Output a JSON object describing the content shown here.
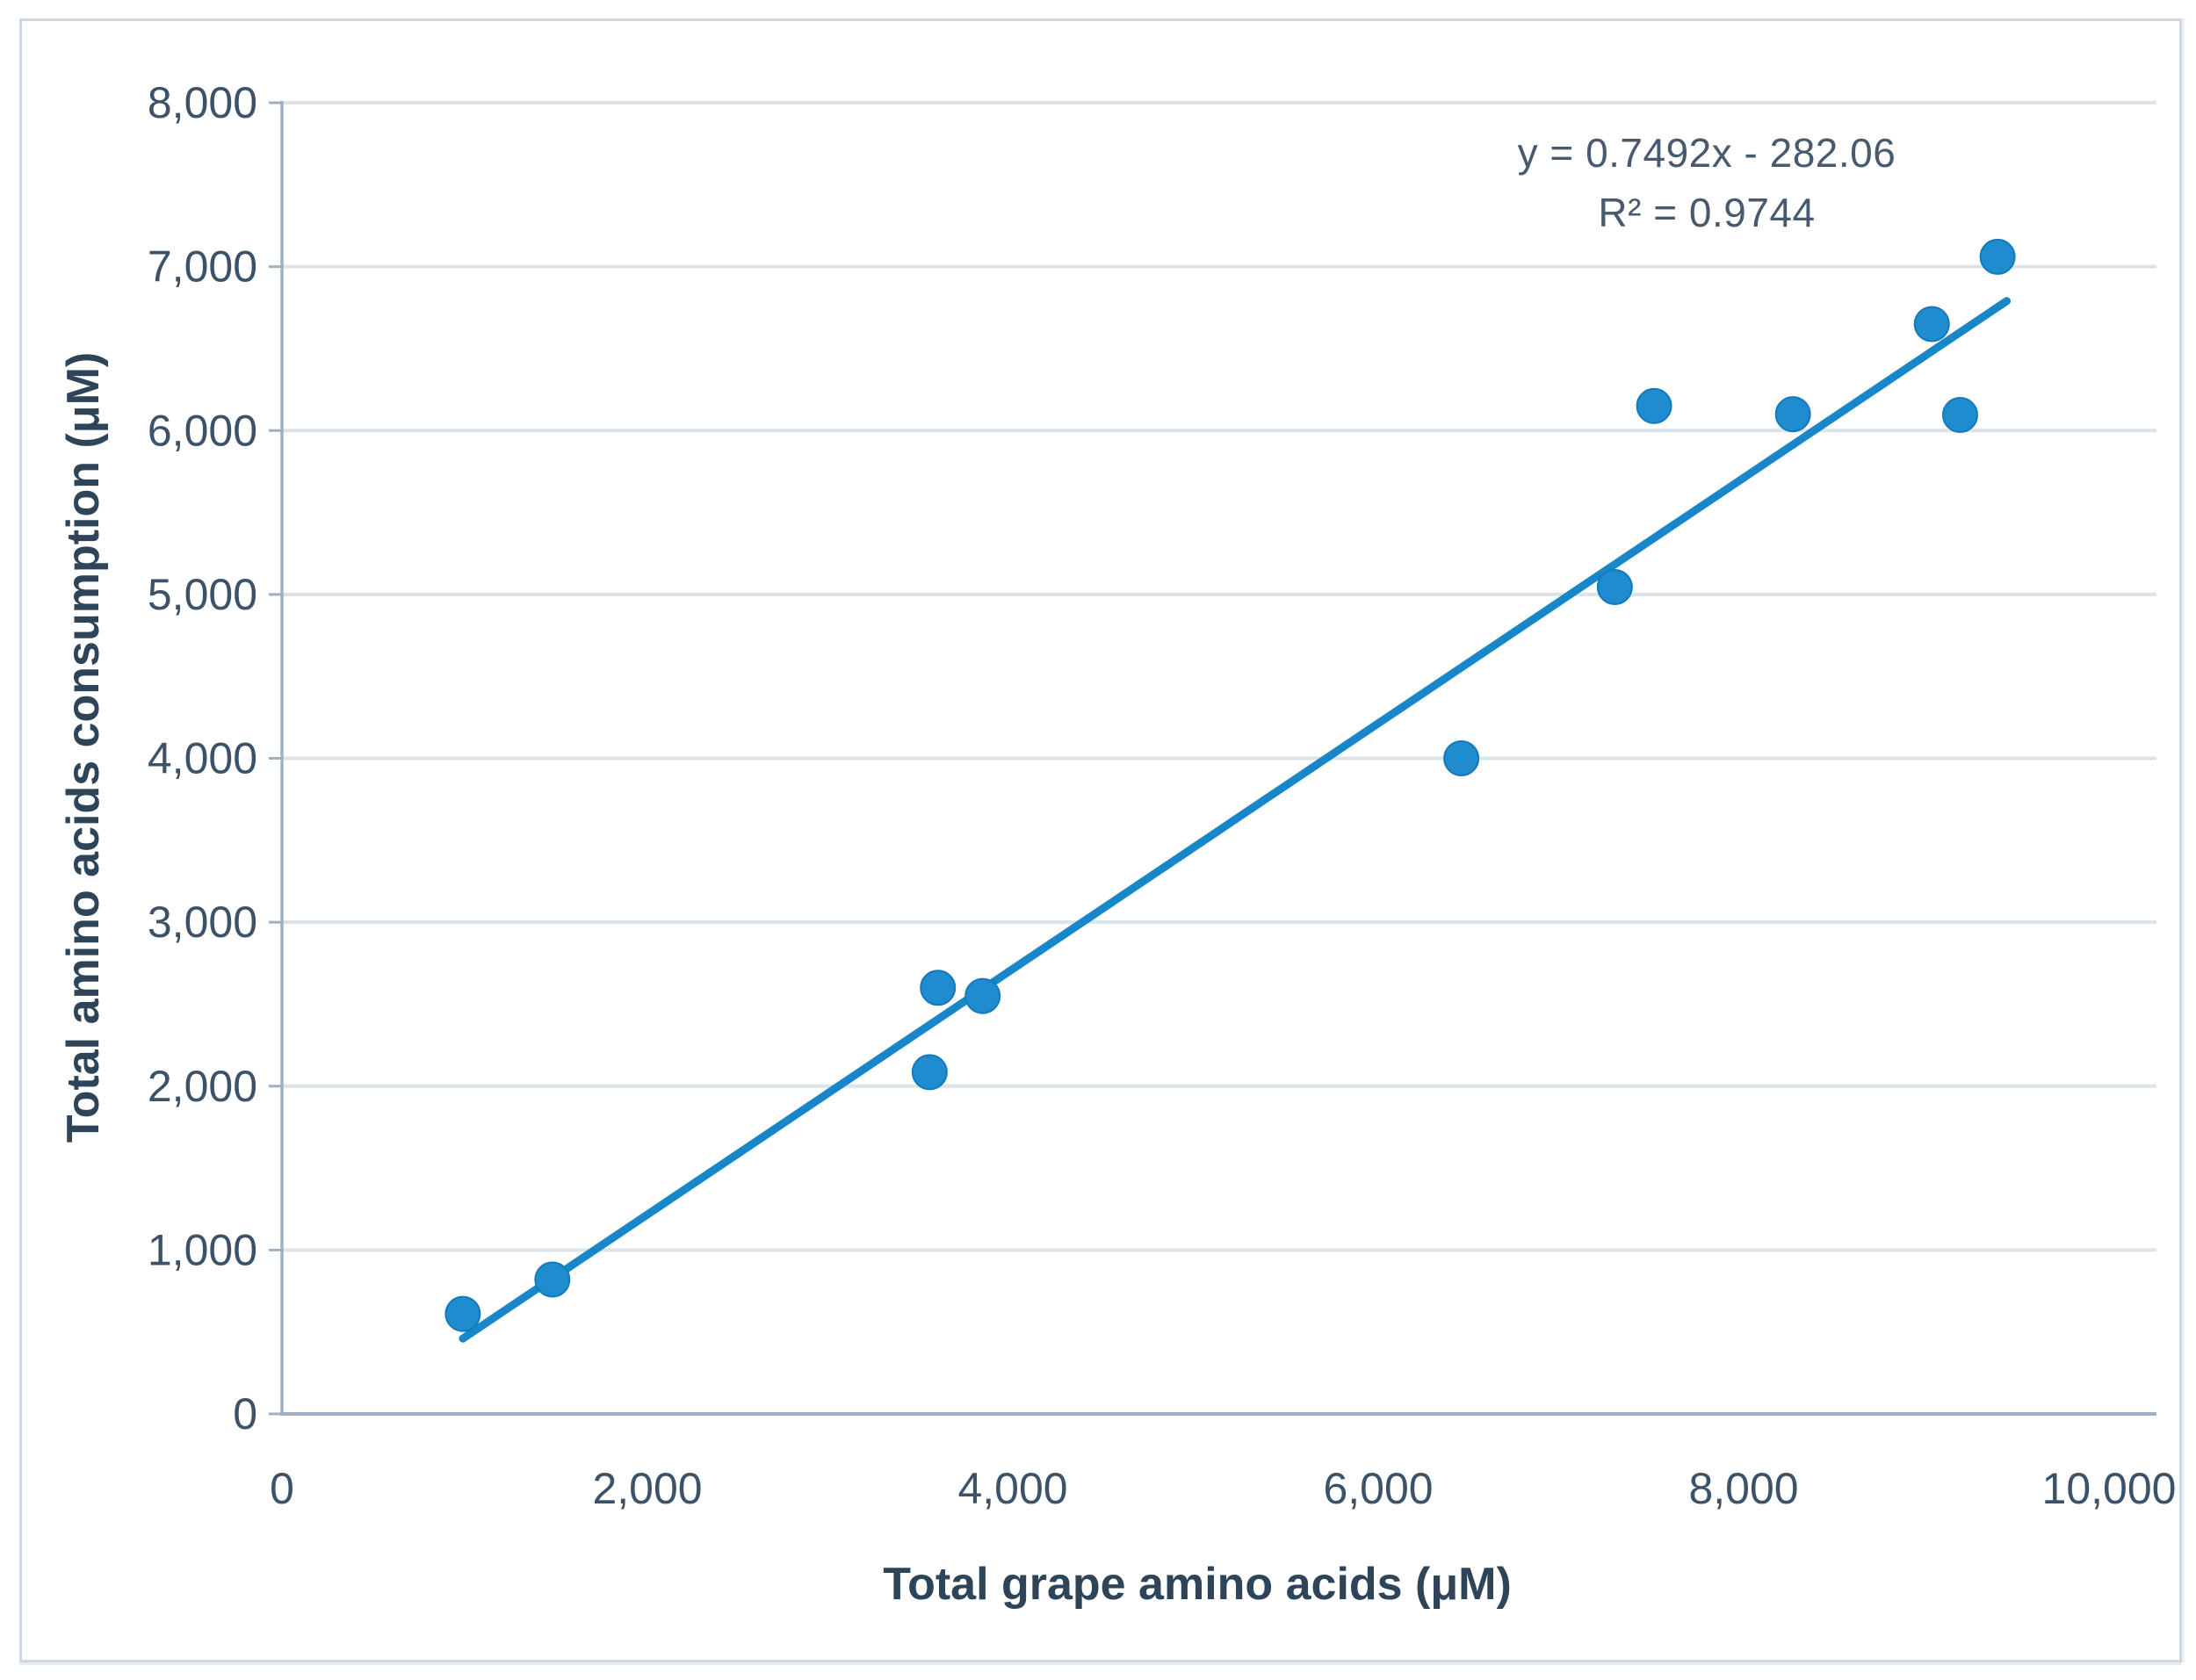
{
  "figure": {
    "border_color": "#ccd8e2",
    "background_color": "#ffffff"
  },
  "chart_data": {
    "type": "scatter",
    "title": "",
    "xlabel": "Total grape amino acids (μM)",
    "ylabel": "Total amino acids consumption (μM)",
    "xlim": [
      0,
      10000
    ],
    "ylim": [
      0,
      8000
    ],
    "xticks": [
      0,
      2000,
      4000,
      6000,
      8000,
      10000
    ],
    "xtick_labels": [
      "0",
      "2,000",
      "4,000",
      "6,000",
      "8,000",
      "10,000"
    ],
    "yticks": [
      0,
      1000,
      2000,
      3000,
      4000,
      5000,
      6000,
      7000,
      8000
    ],
    "ytick_labels": [
      "0",
      "1,000",
      "2,000",
      "3,000",
      "4,000",
      "5,000",
      "6,000",
      "7,000",
      "8,000"
    ],
    "grid": "horizontal-only",
    "legend": "none",
    "points": [
      {
        "x": 990,
        "y": 610
      },
      {
        "x": 1480,
        "y": 820
      },
      {
        "x": 3545,
        "y": 2085
      },
      {
        "x": 3590,
        "y": 2600
      },
      {
        "x": 3835,
        "y": 2550
      },
      {
        "x": 6455,
        "y": 4000
      },
      {
        "x": 7295,
        "y": 5045
      },
      {
        "x": 7510,
        "y": 6150
      },
      {
        "x": 8270,
        "y": 6100
      },
      {
        "x": 9030,
        "y": 6650
      },
      {
        "x": 9185,
        "y": 6095
      },
      {
        "x": 9390,
        "y": 7060
      }
    ],
    "trendline": {
      "slope": 0.7492,
      "intercept": -282.06,
      "x_start": 990,
      "x_end": 9440,
      "equation_label": "y = 0.7492x - 282.06",
      "r2_label": "R² = 0.9744"
    },
    "colors": {
      "marker": "#1e8ccf",
      "marker_edge": "#1579ba",
      "trendline": "#1787c9",
      "gridline": "#dbe3eb",
      "axis": "#9fb0c2",
      "tick_text": "#3c5269",
      "axis_title_text": "#2e4458",
      "equation_text": "#475a6e"
    }
  }
}
